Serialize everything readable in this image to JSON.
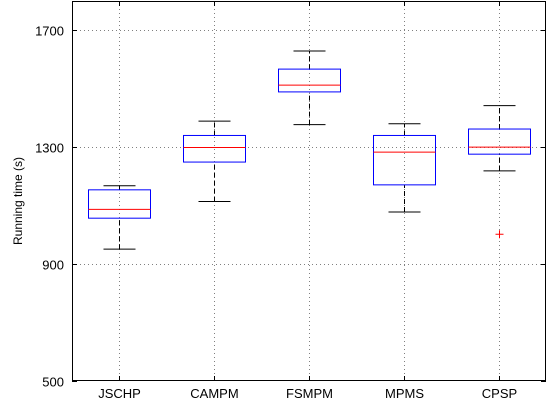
{
  "chart_data": {
    "type": "box",
    "title": "",
    "xlabel": "",
    "ylabel": "Running time (s)",
    "ylim": [
      500,
      1800
    ],
    "yticks": [
      500,
      900,
      1300,
      1700
    ],
    "grid": true,
    "colors": {
      "box": "#0000ff",
      "median": "#ff0000",
      "whisker": "#000000",
      "outlier": "#ff0000",
      "grid": "#808080"
    },
    "categories": [
      "JSCHP",
      "CAMPM",
      "FSMPM",
      "MPMS",
      "CPSP"
    ],
    "boxes": [
      {
        "label": "JSCHP",
        "whisker_low": 951,
        "q1": 1057,
        "median": 1087,
        "q3": 1154,
        "whisker_high": 1168,
        "outliers": []
      },
      {
        "label": "CAMPM",
        "whisker_low": 1114,
        "q1": 1249,
        "median": 1299,
        "q3": 1340,
        "whisker_high": 1389,
        "outliers": []
      },
      {
        "label": "FSMPM",
        "whisker_low": 1377,
        "q1": 1489,
        "median": 1512,
        "q3": 1567,
        "whisker_high": 1629,
        "outliers": []
      },
      {
        "label": "MPMS",
        "whisker_low": 1078,
        "q1": 1171,
        "median": 1283,
        "q3": 1340,
        "whisker_high": 1380,
        "outliers": []
      },
      {
        "label": "CPSP",
        "whisker_low": 1219,
        "q1": 1276,
        "median": 1300,
        "q3": 1362,
        "whisker_high": 1442,
        "outliers": [
          1002
        ]
      }
    ]
  }
}
